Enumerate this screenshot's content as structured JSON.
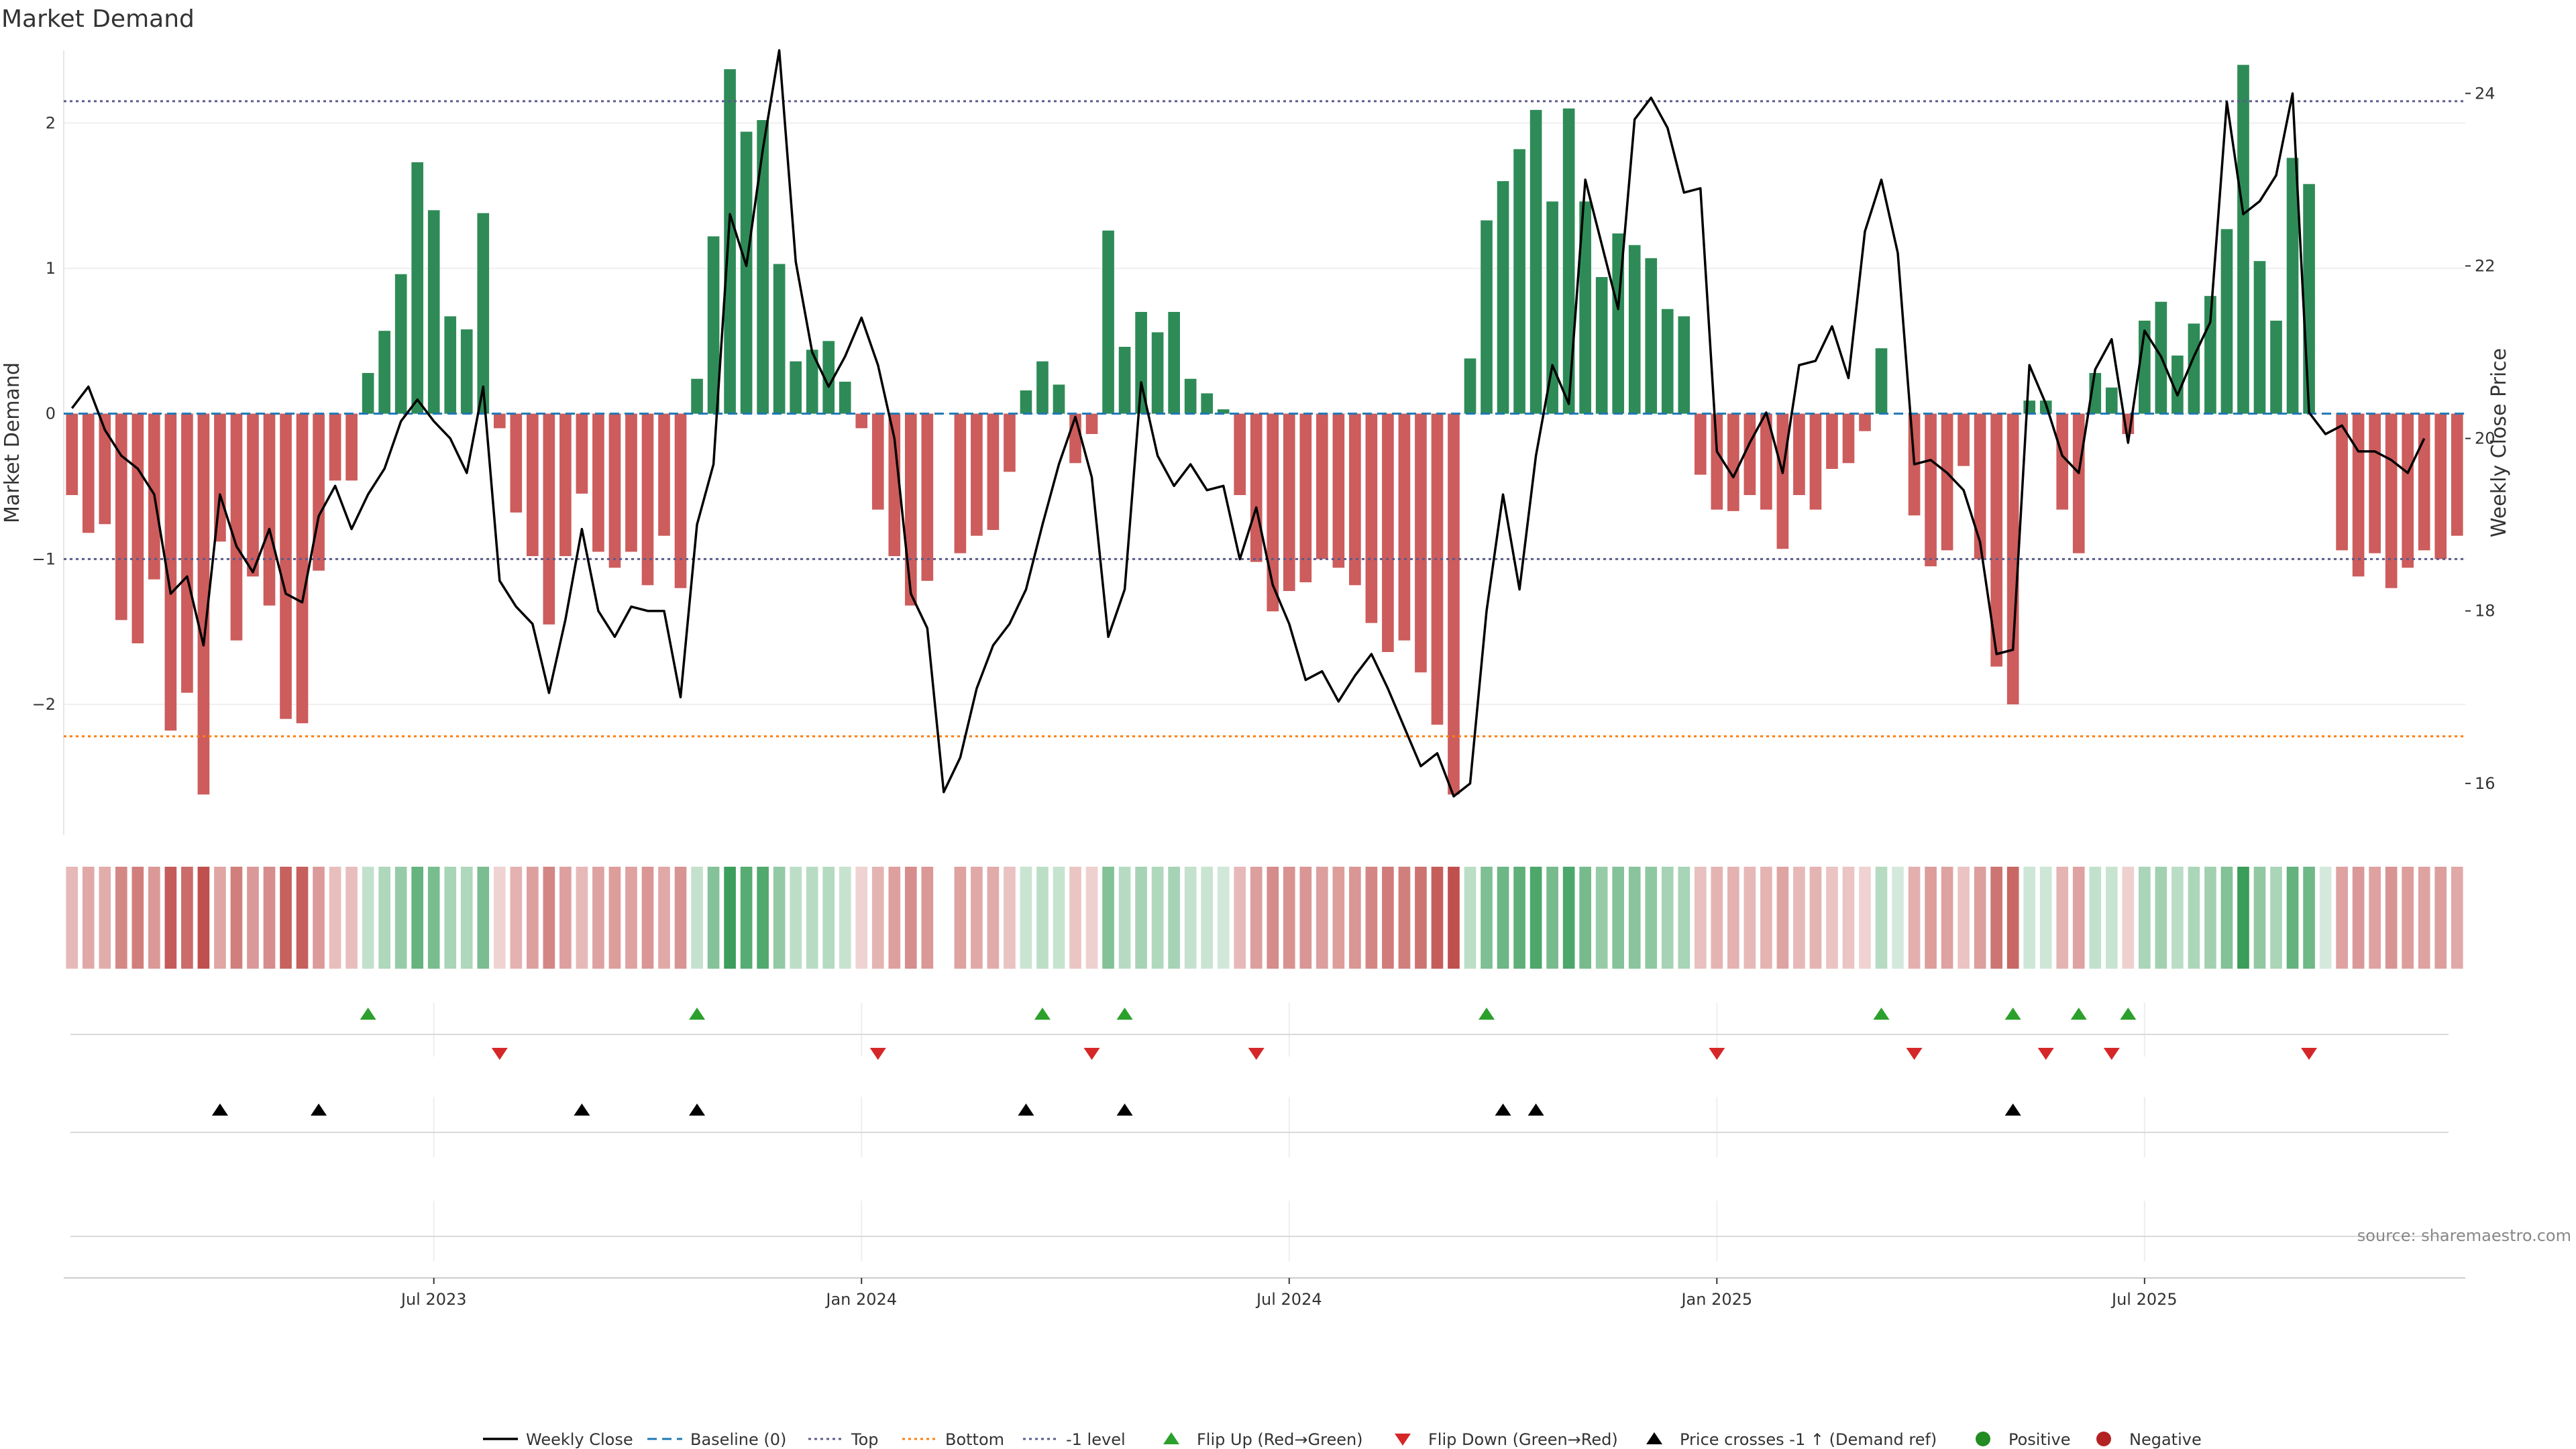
{
  "chart_data": {
    "type": "bar",
    "title": "Market Demand",
    "ylabel_left": "Market Demand",
    "ylabel_right": "Weekly Close Price",
    "ylim_left": [
      -2.9,
      2.5
    ],
    "ylim_right": [
      15.4,
      24.5
    ],
    "yticks_left": [
      2,
      1,
      0,
      -1,
      -2
    ],
    "ytick_labels_left": [
      "2",
      "1",
      "0",
      "−1",
      "−2"
    ],
    "yticks_right": [
      24,
      22,
      20,
      18,
      16
    ],
    "ytick_labels_right": [
      "24",
      "22",
      "20",
      "18",
      "16"
    ],
    "xticks": [
      {
        "label": "Jul 2023",
        "week": 22
      },
      {
        "label": "Jan 2024",
        "week": 48
      },
      {
        "label": "Jul 2024",
        "week": 74
      },
      {
        "label": "Jan 2025",
        "week": 100
      },
      {
        "label": "Jul 2025",
        "week": 126
      }
    ],
    "reference_lines": {
      "baseline": 0,
      "top": 2.15,
      "bottom": -2.22,
      "minus_one_level": -1
    },
    "demand": [
      -0.56,
      -0.82,
      -0.76,
      -1.42,
      -1.58,
      -1.14,
      -2.18,
      -1.92,
      -2.62,
      -0.88,
      -1.56,
      -1.12,
      -1.32,
      -2.1,
      -2.13,
      -1.08,
      -0.46,
      -0.46,
      0.28,
      0.57,
      0.96,
      1.73,
      1.4,
      0.67,
      0.58,
      1.38,
      -0.1,
      -0.68,
      -0.98,
      -1.45,
      -0.98,
      -0.55,
      -0.95,
      -1.06,
      -0.95,
      -1.18,
      -0.84,
      -1.2,
      0.24,
      1.22,
      2.37,
      1.94,
      2.02,
      1.03,
      0.36,
      0.44,
      0.5,
      0.22,
      -0.1,
      -0.66,
      -0.98,
      -1.32,
      -1.15,
      null,
      -0.96,
      -0.84,
      -0.8,
      -0.4,
      0.16,
      0.36,
      0.2,
      -0.34,
      -0.14,
      1.26,
      0.46,
      0.7,
      0.56,
      0.7,
      0.24,
      0.14,
      0.03,
      -0.56,
      -1.02,
      -1.36,
      -1.22,
      -1.16,
      -1.0,
      -1.06,
      -1.18,
      -1.44,
      -1.64,
      -1.56,
      -1.78,
      -2.14,
      -2.62,
      0.38,
      1.33,
      1.6,
      1.82,
      2.09,
      1.46,
      2.1,
      1.46,
      0.94,
      1.24,
      1.16,
      1.07,
      0.72,
      0.67,
      -0.42,
      -0.66,
      -0.67,
      -0.56,
      -0.66,
      -0.93,
      -0.56,
      -0.66,
      -0.38,
      -0.34,
      -0.12,
      0.45,
      0.0,
      -0.7,
      -1.05,
      -0.94,
      -0.36,
      -1.0,
      -1.74,
      -2.0,
      0.09,
      0.09,
      -0.66,
      -0.96,
      0.28,
      0.18,
      -0.14,
      0.64,
      0.77,
      0.4,
      0.62,
      0.81,
      1.27,
      2.4,
      1.05,
      0.64,
      1.76,
      1.58,
      0.0,
      -0.94,
      -1.12,
      -0.96,
      -1.2,
      -1.06,
      -0.94,
      -1.0,
      -0.84
    ],
    "weekly_close": [
      20.35,
      20.6,
      20.1,
      19.8,
      19.65,
      19.35,
      18.2,
      18.4,
      17.6,
      19.35,
      18.75,
      18.45,
      18.95,
      18.2,
      18.1,
      19.1,
      19.45,
      18.95,
      19.35,
      19.65,
      20.2,
      20.45,
      20.2,
      20.0,
      19.6,
      20.6,
      18.35,
      18.05,
      17.85,
      17.05,
      17.9,
      18.95,
      18.0,
      17.7,
      18.05,
      18.0,
      18.0,
      17.0,
      19.0,
      19.7,
      22.6,
      22.0,
      23.35,
      24.5,
      22.05,
      21.0,
      20.6,
      20.95,
      21.4,
      20.85,
      20.0,
      18.2,
      17.8,
      15.9,
      16.3,
      17.1,
      17.6,
      17.85,
      18.25,
      19.0,
      19.7,
      20.25,
      19.55,
      17.7,
      18.25,
      20.65,
      19.8,
      19.45,
      19.7,
      19.4,
      19.45,
      18.6,
      19.2,
      18.3,
      17.85,
      17.2,
      17.3,
      16.95,
      17.25,
      17.5,
      17.1,
      16.65,
      16.2,
      16.35,
      15.85,
      16.0,
      18.0,
      19.35,
      18.25,
      19.8,
      20.85,
      20.4,
      23.0,
      22.25,
      21.5,
      23.7,
      23.95,
      23.6,
      22.85,
      22.9,
      19.85,
      19.55,
      19.95,
      20.3,
      19.6,
      20.85,
      20.9,
      21.3,
      20.7,
      22.4,
      23.0,
      22.15,
      19.7,
      19.75,
      19.6,
      19.4,
      18.8,
      17.5,
      17.55,
      20.85,
      20.4,
      19.8,
      19.6,
      20.8,
      21.15,
      19.95,
      21.25,
      20.95,
      20.5,
      20.95,
      21.35,
      23.9,
      22.6,
      22.75,
      23.05,
      24.0,
      20.3,
      20.05,
      20.15,
      19.85,
      19.85,
      19.75,
      19.6,
      20.0
    ],
    "series": [
      {
        "name": "Weekly Close",
        "style": "line",
        "color": "#000000"
      },
      {
        "name": "Baseline (0)",
        "style": "dashed",
        "color": "#1f77b4"
      },
      {
        "name": "Top",
        "style": "dotted",
        "color": "#5b5b8c"
      },
      {
        "name": "Bottom",
        "style": "dotted",
        "color": "#ff7f0e"
      },
      {
        "name": "-1 level",
        "style": "dotted",
        "color": "#5b5b8c"
      },
      {
        "name": "Flip Up (Red→Green)",
        "style": "triangle-up",
        "color": "#2ca02c"
      },
      {
        "name": "Flip Down (Green→Red)",
        "style": "triangle-down",
        "color": "#d62728"
      },
      {
        "name": "Price crosses -1 ↑ (Demand ref)",
        "style": "triangle-up",
        "color": "#000000"
      },
      {
        "name": "Positive",
        "style": "circle",
        "color": "#228b22"
      },
      {
        "name": "Negative",
        "style": "circle",
        "color": "#b22222"
      }
    ],
    "flip_up_weeks": [
      18,
      38,
      59,
      64,
      86,
      110,
      118,
      122,
      125
    ],
    "flip_down_weeks": [
      26,
      49,
      62,
      72,
      100,
      112,
      120,
      124,
      136
    ],
    "price_cross_weeks": [
      9,
      15,
      31,
      38,
      58,
      64,
      87,
      89,
      118
    ],
    "colors": {
      "positive_bar": "#2e8b57",
      "negative_bar": "#cd5c5c",
      "heat_positive": "#3a9d5a",
      "heat_negative": "#c0504d"
    }
  },
  "legend_position": "bottom-center",
  "source_text": "source: sharemaestro.com"
}
